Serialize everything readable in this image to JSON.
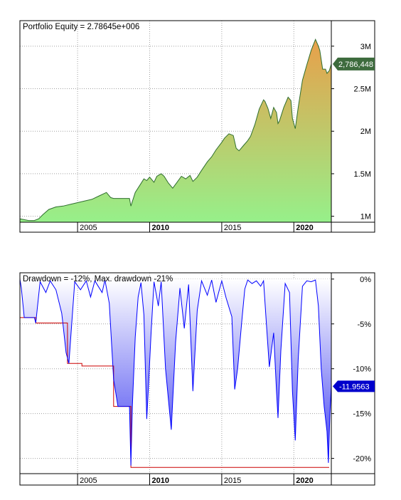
{
  "chart_data": [
    {
      "type": "area",
      "title": "Portfolio Equity = 2.78645e+006",
      "x_range": [
        2001.0,
        2022.6
      ],
      "ylim": [
        0.93,
        3.3
      ],
      "y_unit": "M",
      "y_ticks": [
        1,
        1.5,
        2,
        2.5,
        3
      ],
      "y_tick_labels": [
        "1M",
        "1.5M",
        "2M",
        "2.5M",
        "3M"
      ],
      "x_ticks": [
        2005,
        2010,
        2015,
        2020
      ],
      "x_tick_labels": [
        "2005",
        "2010",
        "2015",
        "2020"
      ],
      "bold_x_ticks": [
        2010,
        2020
      ],
      "grid": true,
      "last_value_label": "2,786,448",
      "colors": {
        "fill_low": "#96f08a",
        "fill_high": "#e8a04a",
        "line": "#2f6f2f",
        "badge": "#3d6b3d"
      },
      "series": [
        {
          "values": [
            [
              2001.0,
              0.97
            ],
            [
              2001.3,
              0.96
            ],
            [
              2001.6,
              0.95
            ],
            [
              2002.0,
              0.95
            ],
            [
              2002.3,
              0.97
            ],
            [
              2002.6,
              1.02
            ],
            [
              2003.0,
              1.08
            ],
            [
              2003.5,
              1.11
            ],
            [
              2004.0,
              1.12
            ],
            [
              2004.5,
              1.14
            ],
            [
              2005.0,
              1.16
            ],
            [
              2005.5,
              1.18
            ],
            [
              2006.0,
              1.2
            ],
            [
              2006.5,
              1.24
            ],
            [
              2007.0,
              1.28
            ],
            [
              2007.3,
              1.22
            ],
            [
              2007.5,
              1.21
            ],
            [
              2008.0,
              1.21
            ],
            [
              2008.6,
              1.21
            ],
            [
              2008.7,
              1.12
            ],
            [
              2009.0,
              1.28
            ],
            [
              2009.3,
              1.36
            ],
            [
              2009.6,
              1.44
            ],
            [
              2009.8,
              1.42
            ],
            [
              2010.0,
              1.46
            ],
            [
              2010.3,
              1.4
            ],
            [
              2010.5,
              1.47
            ],
            [
              2010.8,
              1.5
            ],
            [
              2011.0,
              1.47
            ],
            [
              2011.3,
              1.39
            ],
            [
              2011.6,
              1.33
            ],
            [
              2011.9,
              1.4
            ],
            [
              2012.2,
              1.47
            ],
            [
              2012.5,
              1.44
            ],
            [
              2012.8,
              1.48
            ],
            [
              2013.0,
              1.41
            ],
            [
              2013.3,
              1.46
            ],
            [
              2013.6,
              1.54
            ],
            [
              2014.0,
              1.64
            ],
            [
              2014.3,
              1.7
            ],
            [
              2014.6,
              1.78
            ],
            [
              2015.0,
              1.87
            ],
            [
              2015.2,
              1.92
            ],
            [
              2015.5,
              1.97
            ],
            [
              2015.8,
              1.95
            ],
            [
              2016.0,
              1.8
            ],
            [
              2016.2,
              1.77
            ],
            [
              2016.5,
              1.83
            ],
            [
              2016.8,
              1.89
            ],
            [
              2017.0,
              1.94
            ],
            [
              2017.3,
              2.08
            ],
            [
              2017.6,
              2.26
            ],
            [
              2017.9,
              2.37
            ],
            [
              2018.0,
              2.35
            ],
            [
              2018.2,
              2.27
            ],
            [
              2018.4,
              2.15
            ],
            [
              2018.6,
              2.28
            ],
            [
              2018.8,
              2.22
            ],
            [
              2018.9,
              2.09
            ],
            [
              2019.0,
              2.12
            ],
            [
              2019.3,
              2.28
            ],
            [
              2019.6,
              2.4
            ],
            [
              2019.8,
              2.36
            ],
            [
              2019.9,
              2.15
            ],
            [
              2020.1,
              2.03
            ],
            [
              2020.3,
              2.28
            ],
            [
              2020.6,
              2.6
            ],
            [
              2020.9,
              2.78
            ],
            [
              2021.2,
              2.95
            ],
            [
              2021.5,
              3.08
            ],
            [
              2021.7,
              3.0
            ],
            [
              2021.8,
              2.95
            ],
            [
              2022.0,
              2.73
            ],
            [
              2022.2,
              2.73
            ],
            [
              2022.3,
              2.68
            ],
            [
              2022.45,
              2.71
            ],
            [
              2022.6,
              2.79
            ]
          ]
        }
      ]
    },
    {
      "type": "area",
      "title": "Drawdown = -12%, Max. drawdown -21%",
      "x_range": [
        2001.0,
        2022.6
      ],
      "ylim": [
        -21.7,
        0.7
      ],
      "y_ticks": [
        0,
        -5,
        -10,
        -15,
        -20
      ],
      "y_tick_labels": [
        "0%",
        "-5%",
        "-10%",
        "-15%",
        "-20%"
      ],
      "x_ticks": [
        2005,
        2010,
        2015,
        2020
      ],
      "x_tick_labels": [
        "2005",
        "2010",
        "2015",
        "2020"
      ],
      "bold_x_ticks": [
        2010,
        2020
      ],
      "grid": true,
      "last_value_label": "-11.9563",
      "colors": {
        "fill_top": "#ffffff",
        "fill_bottom": "#4040f0",
        "line": "#0000ff",
        "max_dd_line": "#cc0000",
        "badge": "#0000cc"
      },
      "series": [
        {
          "values": [
            [
              2001.0,
              0
            ],
            [
              2001.1,
              -1
            ],
            [
              2001.3,
              -4.3
            ],
            [
              2002.0,
              -4.3
            ],
            [
              2002.1,
              -4.9
            ],
            [
              2002.4,
              -0.3
            ],
            [
              2002.8,
              -1.5
            ],
            [
              2003.1,
              -0.2
            ],
            [
              2003.5,
              -1.2
            ],
            [
              2003.9,
              -3.8
            ],
            [
              2004.0,
              -5.2
            ],
            [
              2004.2,
              -8.2
            ],
            [
              2004.4,
              -9.4
            ],
            [
              2004.8,
              -0.3
            ],
            [
              2005.2,
              -1.2
            ],
            [
              2005.6,
              -0.2
            ],
            [
              2005.9,
              -2.0
            ],
            [
              2006.2,
              -0.2
            ],
            [
              2006.7,
              -1.5
            ],
            [
              2006.9,
              -0.1
            ],
            [
              2007.2,
              -2.7
            ],
            [
              2007.5,
              -11.2
            ],
            [
              2007.8,
              -14.2
            ],
            [
              2008.6,
              -14.2
            ],
            [
              2008.7,
              -20.8
            ],
            [
              2008.8,
              -14.1
            ],
            [
              2009.0,
              -6.5
            ],
            [
              2009.2,
              -2.0
            ],
            [
              2009.4,
              -0.4
            ],
            [
              2009.6,
              -4.0
            ],
            [
              2009.8,
              -15.6
            ],
            [
              2009.9,
              -12.5
            ],
            [
              2010.1,
              -6.0
            ],
            [
              2010.3,
              -0.3
            ],
            [
              2010.6,
              -3.0
            ],
            [
              2010.8,
              -0.3
            ],
            [
              2011.1,
              -10.0
            ],
            [
              2011.5,
              -16.8
            ],
            [
              2011.8,
              -7.0
            ],
            [
              2012.1,
              -1.0
            ],
            [
              2012.4,
              -5.5
            ],
            [
              2012.7,
              -0.6
            ],
            [
              2013.0,
              -12.5
            ],
            [
              2013.3,
              -3.5
            ],
            [
              2013.6,
              -0.2
            ],
            [
              2014.0,
              -1.8
            ],
            [
              2014.3,
              -0.1
            ],
            [
              2014.6,
              -2.6
            ],
            [
              2015.0,
              -0.2
            ],
            [
              2015.3,
              -2.1
            ],
            [
              2015.7,
              -4.2
            ],
            [
              2015.9,
              -12.3
            ],
            [
              2016.1,
              -10.0
            ],
            [
              2016.4,
              -4.5
            ],
            [
              2016.6,
              -1.1
            ],
            [
              2016.8,
              -0.1
            ],
            [
              2017.1,
              -0.5
            ],
            [
              2017.4,
              -0.2
            ],
            [
              2017.7,
              -0.8
            ],
            [
              2017.9,
              -0.2
            ],
            [
              2018.1,
              -5.0
            ],
            [
              2018.3,
              -9.8
            ],
            [
              2018.6,
              -6.0
            ],
            [
              2018.8,
              -12.5
            ],
            [
              2018.9,
              -15.5
            ],
            [
              2019.1,
              -8.0
            ],
            [
              2019.4,
              -0.5
            ],
            [
              2019.7,
              -1.5
            ],
            [
              2019.9,
              -12.5
            ],
            [
              2020.1,
              -18.0
            ],
            [
              2020.3,
              -9.0
            ],
            [
              2020.6,
              -0.8
            ],
            [
              2020.9,
              -0.2
            ],
            [
              2021.2,
              -0.3
            ],
            [
              2021.5,
              -0.1
            ],
            [
              2021.7,
              -3.0
            ],
            [
              2021.9,
              -10.0
            ],
            [
              2022.1,
              -14.2
            ],
            [
              2022.3,
              -17.0
            ],
            [
              2022.4,
              -20.5
            ],
            [
              2022.5,
              -15.0
            ],
            [
              2022.6,
              -11.96
            ]
          ]
        },
        {
          "values": [
            [
              2001.0,
              -4.3
            ],
            [
              2002.1,
              -4.3
            ],
            [
              2002.1,
              -4.9
            ],
            [
              2004.3,
              -4.9
            ],
            [
              2004.3,
              -9.4
            ],
            [
              2005.3,
              -9.4
            ],
            [
              2005.3,
              -9.7
            ],
            [
              2007.5,
              -9.7
            ],
            [
              2007.5,
              -14.2
            ],
            [
              2008.7,
              -14.2
            ],
            [
              2008.7,
              -21.0
            ],
            [
              2022.45,
              -21.0
            ]
          ]
        }
      ]
    }
  ]
}
